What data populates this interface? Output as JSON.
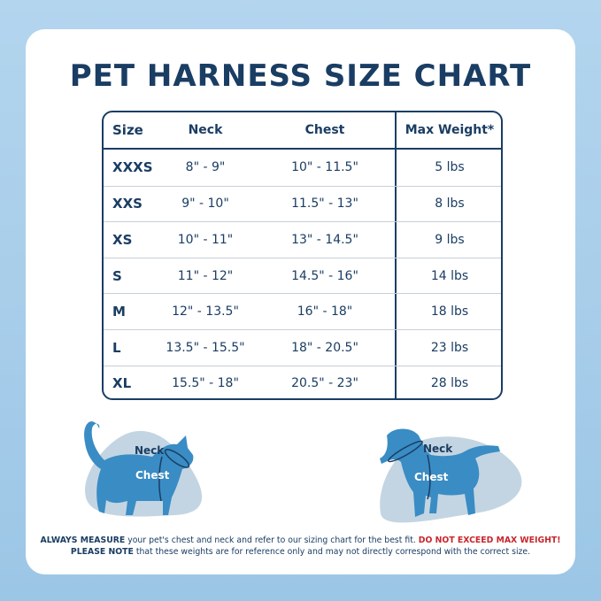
{
  "title": "PET HARNESS SIZE CHART",
  "table": {
    "headers": [
      "Size",
      "Neck",
      "Chest",
      "Max Weight*"
    ],
    "rows": [
      [
        "XXXS",
        "8\" - 9\"",
        "10\" - 11.5\"",
        "5 lbs"
      ],
      [
        "XXS",
        "9\" - 10\"",
        "11.5\" - 13\"",
        "8 lbs"
      ],
      [
        "XS",
        "10\" - 11\"",
        "13\" - 14.5\"",
        "9 lbs"
      ],
      [
        "S",
        "11\" - 12\"",
        "14.5\" - 16\"",
        "14 lbs"
      ],
      [
        "M",
        "12\" - 13.5\"",
        "16\" - 18\"",
        "18 lbs"
      ],
      [
        "L",
        "13.5\" - 15.5\"",
        "18\" - 20.5\"",
        "23 lbs"
      ],
      [
        "XL",
        "15.5\" - 18\"",
        "20.5\" - 23\"",
        "28 lbs"
      ]
    ]
  },
  "cat": {
    "neck_label": "Neck",
    "chest_label": "Chest"
  },
  "dog": {
    "neck_label": "Neck",
    "chest_label": "Chest"
  },
  "footer": {
    "line1_bold": "ALWAYS MEASURE",
    "line1_text": " your pet's chest and neck and refer  to our sizing chart for the best fit. ",
    "line1_warning": "DO NOT EXCEED MAX WEIGHT!",
    "line2_bold": "PLEASE NOTE",
    "line2_text": " that these weights are for reference only and may not directly correspond with the correct size."
  },
  "colors": {
    "navy": "#1a3d63",
    "pet_blue": "#3a8cc4",
    "blob": "#c3d5e2",
    "warning": "#c8262c"
  }
}
